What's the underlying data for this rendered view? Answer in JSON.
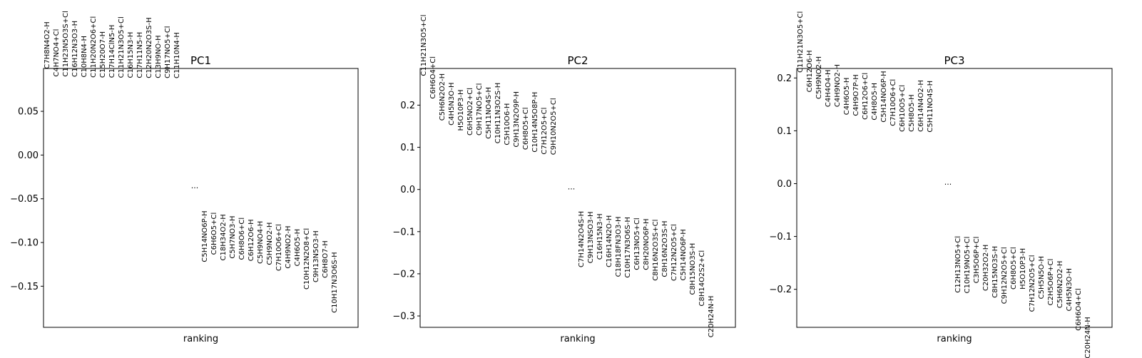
{
  "chart_data": [
    {
      "type": "scatter",
      "title": "PC1",
      "xlabel": "ranking",
      "ylabel": "",
      "ylim": [
        -0.197,
        0.099
      ],
      "yticks": [
        "0.05",
        "0.00",
        "−0.05",
        "−0.10",
        "−0.15"
      ],
      "ytick_values": [
        0.05,
        0.0,
        -0.05,
        -0.1,
        -0.15
      ],
      "ellipsis": "...",
      "ellipsis_value": -0.038,
      "grid": false,
      "top": [
        {
          "label": "C7H8N4O2-H",
          "value": 0.0985
        },
        {
          "label": "C4H7NO4+Cl",
          "value": 0.0895
        },
        {
          "label": "C11H23N5O3S+Cl",
          "value": 0.0895
        },
        {
          "label": "C16H12N3O3-H",
          "value": 0.0892
        },
        {
          "label": "C10H8N4-H",
          "value": 0.0888
        },
        {
          "label": "C11H20N2O6+Cl",
          "value": 0.0885
        },
        {
          "label": "C15H20O7-H",
          "value": 0.0883
        },
        {
          "label": "C17H14ClN5-H",
          "value": 0.0882
        },
        {
          "label": "C11H21N3O5+Cl",
          "value": 0.0881
        },
        {
          "label": "C16H15N3-H",
          "value": 0.088
        },
        {
          "label": "C17H11N5-H",
          "value": 0.0879
        },
        {
          "label": "C12H20N2O3S-H",
          "value": 0.0878
        },
        {
          "label": "C13H9NO-H",
          "value": 0.0878
        },
        {
          "label": "C9H17NO5+Cl",
          "value": 0.0877
        },
        {
          "label": "C11H10N4-H",
          "value": 0.0876
        }
      ],
      "bottom": [
        {
          "label": "C5H14NO6P-H",
          "value": -0.0636
        },
        {
          "label": "C6H6O5+Cl",
          "value": -0.0655
        },
        {
          "label": "C18H34O2-H",
          "value": -0.0675
        },
        {
          "label": "C5H7NO3-H",
          "value": -0.0694
        },
        {
          "label": "C6H8O6+Cl",
          "value": -0.0713
        },
        {
          "label": "C6H12O6-H",
          "value": -0.0733
        },
        {
          "label": "C5H9NO4-H",
          "value": -0.0753
        },
        {
          "label": "C5H9NO2-H",
          "value": -0.0768
        },
        {
          "label": "C7H10O6+Cl",
          "value": -0.0788
        },
        {
          "label": "C4H9NO2-H",
          "value": -0.0808
        },
        {
          "label": "C4H6O5-H",
          "value": -0.0843
        },
        {
          "label": "C10H12N2O8+Cl",
          "value": -0.0835
        },
        {
          "label": "C9H13N5O3-H",
          "value": -0.0863
        },
        {
          "label": "C6H8O7-H",
          "value": -0.0977
        },
        {
          "label": "C10H17N3O6S-H",
          "value": -0.1108
        }
      ]
    },
    {
      "type": "scatter",
      "title": "PC2",
      "xlabel": "ranking",
      "ylabel": "",
      "ylim": [
        -0.327,
        0.287
      ],
      "yticks": [
        "0.2",
        "0.1",
        "0.0",
        "−0.1",
        "−0.2",
        "−0.3"
      ],
      "ytick_values": [
        0.2,
        0.1,
        0.0,
        -0.1,
        -0.2,
        -0.3
      ],
      "ellipsis": "...",
      "ellipsis_value": 0.0,
      "grid": false,
      "top": [
        {
          "label": "C11H21N3O5+Cl",
          "value": 0.269
        },
        {
          "label": "C6H6O4+Cl",
          "value": 0.215
        },
        {
          "label": "C5H6N2O2-H",
          "value": 0.163
        },
        {
          "label": "C4H5N3O-H",
          "value": 0.152
        },
        {
          "label": "H5O10P3-H",
          "value": 0.139
        },
        {
          "label": "C6H5NO2+Cl",
          "value": 0.128
        },
        {
          "label": "C9H17NO5+Cl",
          "value": 0.128
        },
        {
          "label": "C5H11NO4S-H",
          "value": 0.12
        },
        {
          "label": "C10H11N3O2S-H",
          "value": 0.109
        },
        {
          "label": "C5H10O6-H",
          "value": 0.105
        },
        {
          "label": "C9H13N2O9P-H",
          "value": 0.1
        },
        {
          "label": "C6H8O5+Cl",
          "value": 0.094
        },
        {
          "label": "C10H14N5O8P-H",
          "value": 0.088
        },
        {
          "label": "C7H12O5+Cl",
          "value": 0.083
        },
        {
          "label": "C9H10N2O5+Cl",
          "value": 0.082
        }
      ],
      "bottom": [
        {
          "label": "C7H14N2O4S-H",
          "value": -0.051
        },
        {
          "label": "C9H13NSO3-H",
          "value": -0.052
        },
        {
          "label": "C16H15N3-H",
          "value": -0.057
        },
        {
          "label": "C16H14N2O-H",
          "value": -0.061
        },
        {
          "label": "C18H18FN3O3-H",
          "value": -0.064
        },
        {
          "label": "C10H17N3O6S-H",
          "value": -0.065
        },
        {
          "label": "C6H13NO5+Cl",
          "value": -0.067
        },
        {
          "label": "C8H20NO6P-H",
          "value": -0.069
        },
        {
          "label": "C8H16N2O3S+Cl",
          "value": -0.071
        },
        {
          "label": "C8H16N2O3S-H",
          "value": -0.074
        },
        {
          "label": "C7H12N2O5+Cl",
          "value": -0.082
        },
        {
          "label": "C5H14NO6P-H",
          "value": -0.094
        },
        {
          "label": "C8H15NO3S-H",
          "value": -0.127
        },
        {
          "label": "C8H14O2S2+Cl",
          "value": -0.144
        },
        {
          "label": "C20H24N-H",
          "value": -0.252
        }
      ]
    },
    {
      "type": "scatter",
      "title": "PC3",
      "xlabel": "ranking",
      "ylabel": "",
      "ylim": [
        -0.272,
        0.218
      ],
      "yticks": [
        "0.2",
        "0.1",
        "0.0",
        "−0.1",
        "−0.2"
      ],
      "ytick_values": [
        0.2,
        0.1,
        0.0,
        -0.1,
        -0.2
      ],
      "ellipsis": "...",
      "ellipsis_value": -0.002,
      "grid": false,
      "top": [
        {
          "label": "C11H21N3O5+Cl",
          "value": 0.21
        },
        {
          "label": "C6H12O6-H",
          "value": 0.173
        },
        {
          "label": "C5H9NO2-H",
          "value": 0.16
        },
        {
          "label": "C4H4O4-H",
          "value": 0.145
        },
        {
          "label": "C4H9NO2-H",
          "value": 0.145
        },
        {
          "label": "C4H6O5-H",
          "value": 0.13
        },
        {
          "label": "C4H9O7P-H",
          "value": 0.128
        },
        {
          "label": "C6H12O6+Cl",
          "value": 0.121
        },
        {
          "label": "C4H8O5-H",
          "value": 0.12
        },
        {
          "label": "C5H14NO6P-H",
          "value": 0.116
        },
        {
          "label": "C7H10O6+Cl",
          "value": 0.109
        },
        {
          "label": "C6H10O5+Cl",
          "value": 0.098
        },
        {
          "label": "C5H8O5-H",
          "value": 0.098
        },
        {
          "label": "C6H14N4O2-H",
          "value": 0.098
        },
        {
          "label": "C5H11NO4S-H",
          "value": 0.097
        }
      ],
      "bottom": [
        {
          "label": "C12H13NO5+Cl",
          "value": -0.099
        },
        {
          "label": "C10H19NO5+Cl",
          "value": -0.1
        },
        {
          "label": "C3H5O6P+Cl",
          "value": -0.1
        },
        {
          "label": "C20H32O2-H",
          "value": -0.115
        },
        {
          "label": "C8H15NO3S-H",
          "value": -0.118
        },
        {
          "label": "C9H12N2O5+Cl",
          "value": -0.12
        },
        {
          "label": "C6H8O5+Cl",
          "value": -0.12
        },
        {
          "label": "H5O10P3-H",
          "value": -0.122
        },
        {
          "label": "C7H12N2O5+Cl",
          "value": -0.135
        },
        {
          "label": "C5H5N5O-H",
          "value": -0.137
        },
        {
          "label": "C2H5O6P+Cl",
          "value": -0.142
        },
        {
          "label": "C5H6N2O2-H",
          "value": -0.146
        },
        {
          "label": "C4H5N3O-H",
          "value": -0.16
        },
        {
          "label": "C6H6O4+Cl",
          "value": -0.198
        },
        {
          "label": "C20H24N-H",
          "value": -0.252
        }
      ]
    }
  ]
}
